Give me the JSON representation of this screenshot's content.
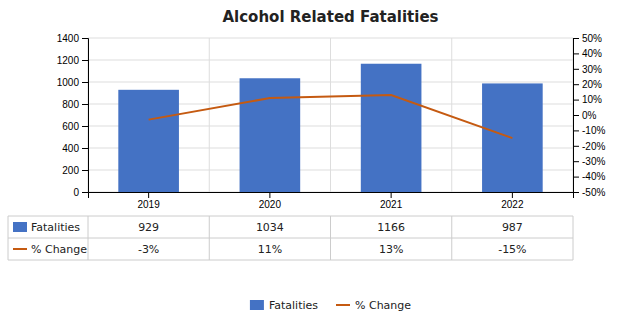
{
  "chart_data": {
    "type": "bar",
    "title": "Alcohol Related Fatalities",
    "categories": [
      "2019",
      "2020",
      "2021",
      "2022"
    ],
    "series": [
      {
        "name": "Fatalities",
        "type": "bar",
        "color": "#4472C4",
        "values": [
          929,
          1034,
          1166,
          987
        ]
      },
      {
        "name": "% Change",
        "type": "line",
        "axis": "y2",
        "color": "#C55A11",
        "values": [
          -3,
          11,
          13,
          -15
        ],
        "value_labels": [
          "-3%",
          "11%",
          "13%",
          "-15%"
        ]
      }
    ],
    "ylim": [
      0,
      1400
    ],
    "yticks": [
      0,
      200,
      400,
      600,
      800,
      1000,
      1200,
      1400
    ],
    "y2lim": [
      -50,
      50
    ],
    "y2ticks": [
      {
        "value": -50,
        "label": "-50%"
      },
      {
        "value": -40,
        "label": "-40%"
      },
      {
        "value": -30,
        "label": "-30%"
      },
      {
        "value": -20,
        "label": "-20%"
      },
      {
        "value": -10,
        "label": "-10%"
      },
      {
        "value": 0,
        "label": "0%"
      },
      {
        "value": 10,
        "label": "10%"
      },
      {
        "value": 20,
        "label": "20%"
      },
      {
        "value": 30,
        "label": "30%"
      },
      {
        "value": 40,
        "label": "40%"
      },
      {
        "value": 50,
        "label": "50%"
      }
    ],
    "grid": true,
    "data_labels": true,
    "legend": "bottom"
  }
}
